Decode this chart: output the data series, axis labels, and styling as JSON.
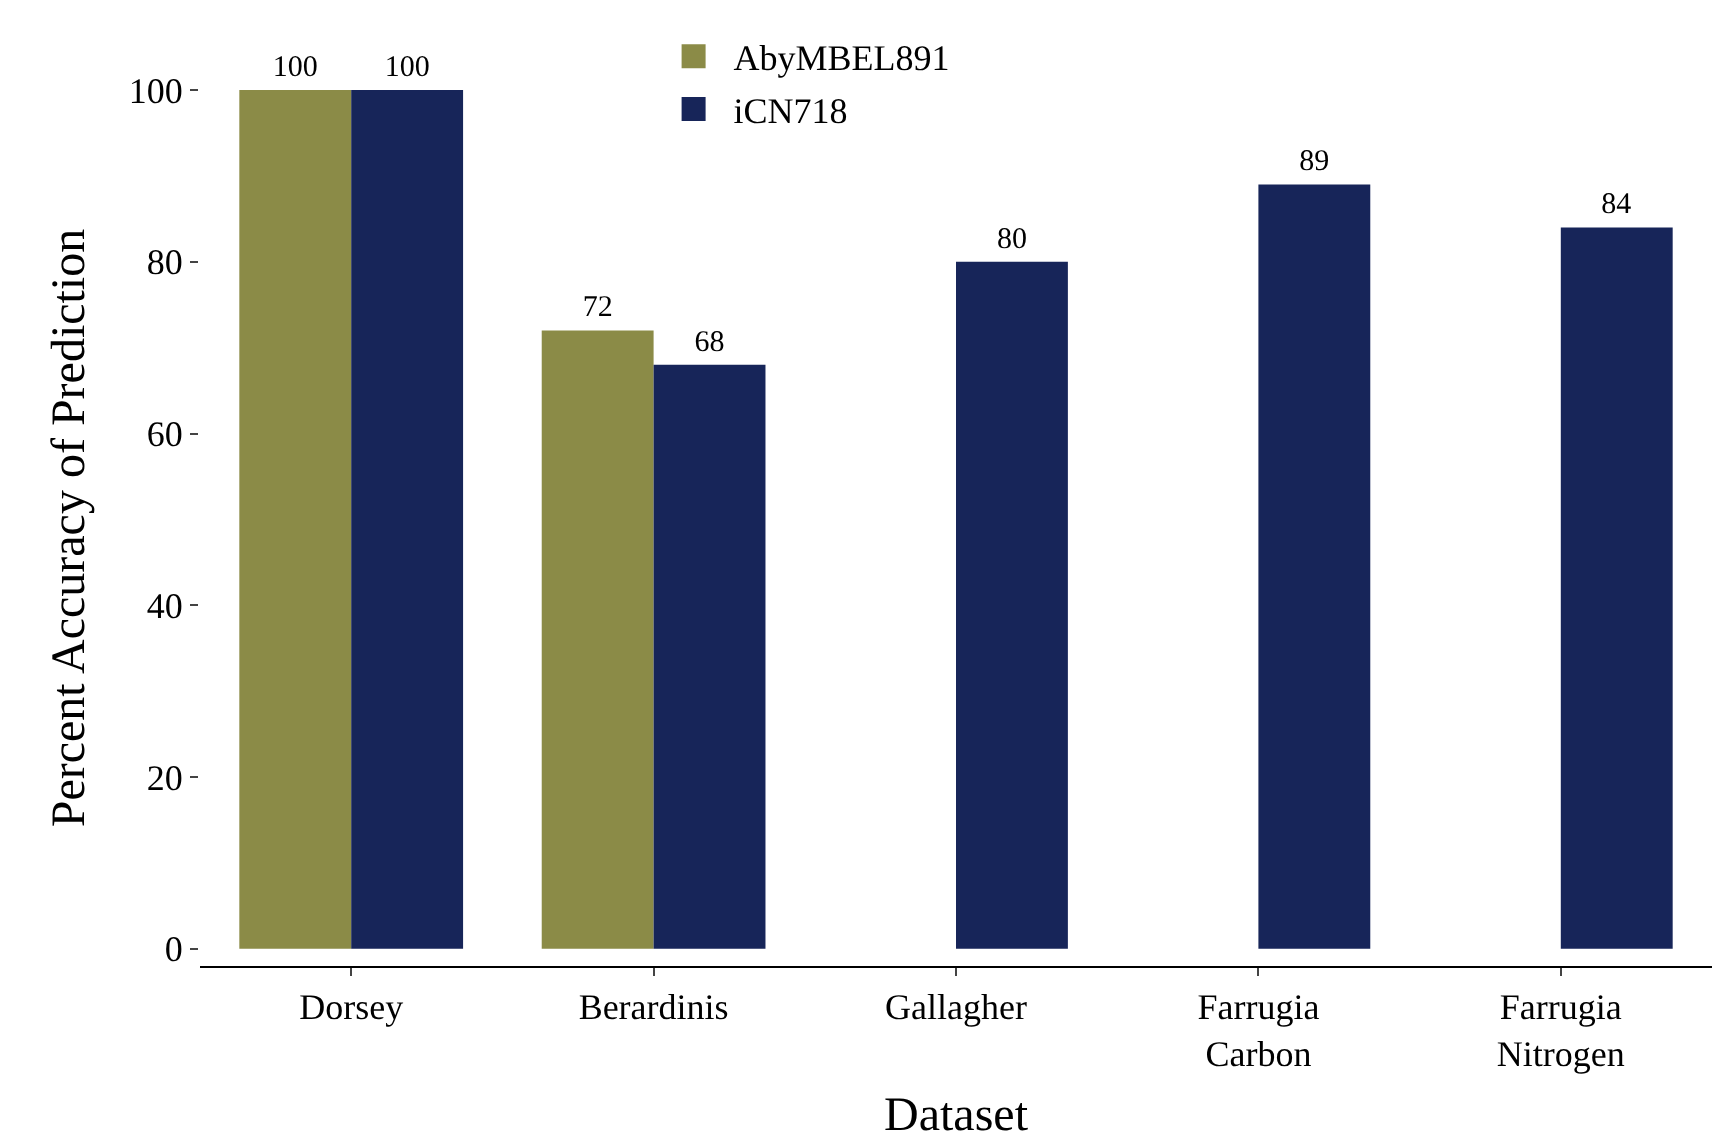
{
  "chart_data": {
    "type": "bar",
    "xlabel": "Dataset",
    "ylabel": "Percent Accuracy of Prediction",
    "categories": [
      "Dorsey",
      "Berardinis",
      "Gallagher",
      "Farrugia Carbon",
      "Farrugia Nitrogen"
    ],
    "series": [
      {
        "name": "AbyMBEL891",
        "color": "#8b8b47",
        "values": [
          100,
          72,
          null,
          null,
          null
        ]
      },
      {
        "name": "iCN718",
        "color": "#172559",
        "values": [
          100,
          68,
          80,
          89,
          84
        ]
      }
    ],
    "ylim": [
      -2,
      100
    ],
    "yticks": [
      0,
      20,
      40,
      60,
      80,
      100
    ],
    "grid": false,
    "legend": "top",
    "data_labels": true
  }
}
